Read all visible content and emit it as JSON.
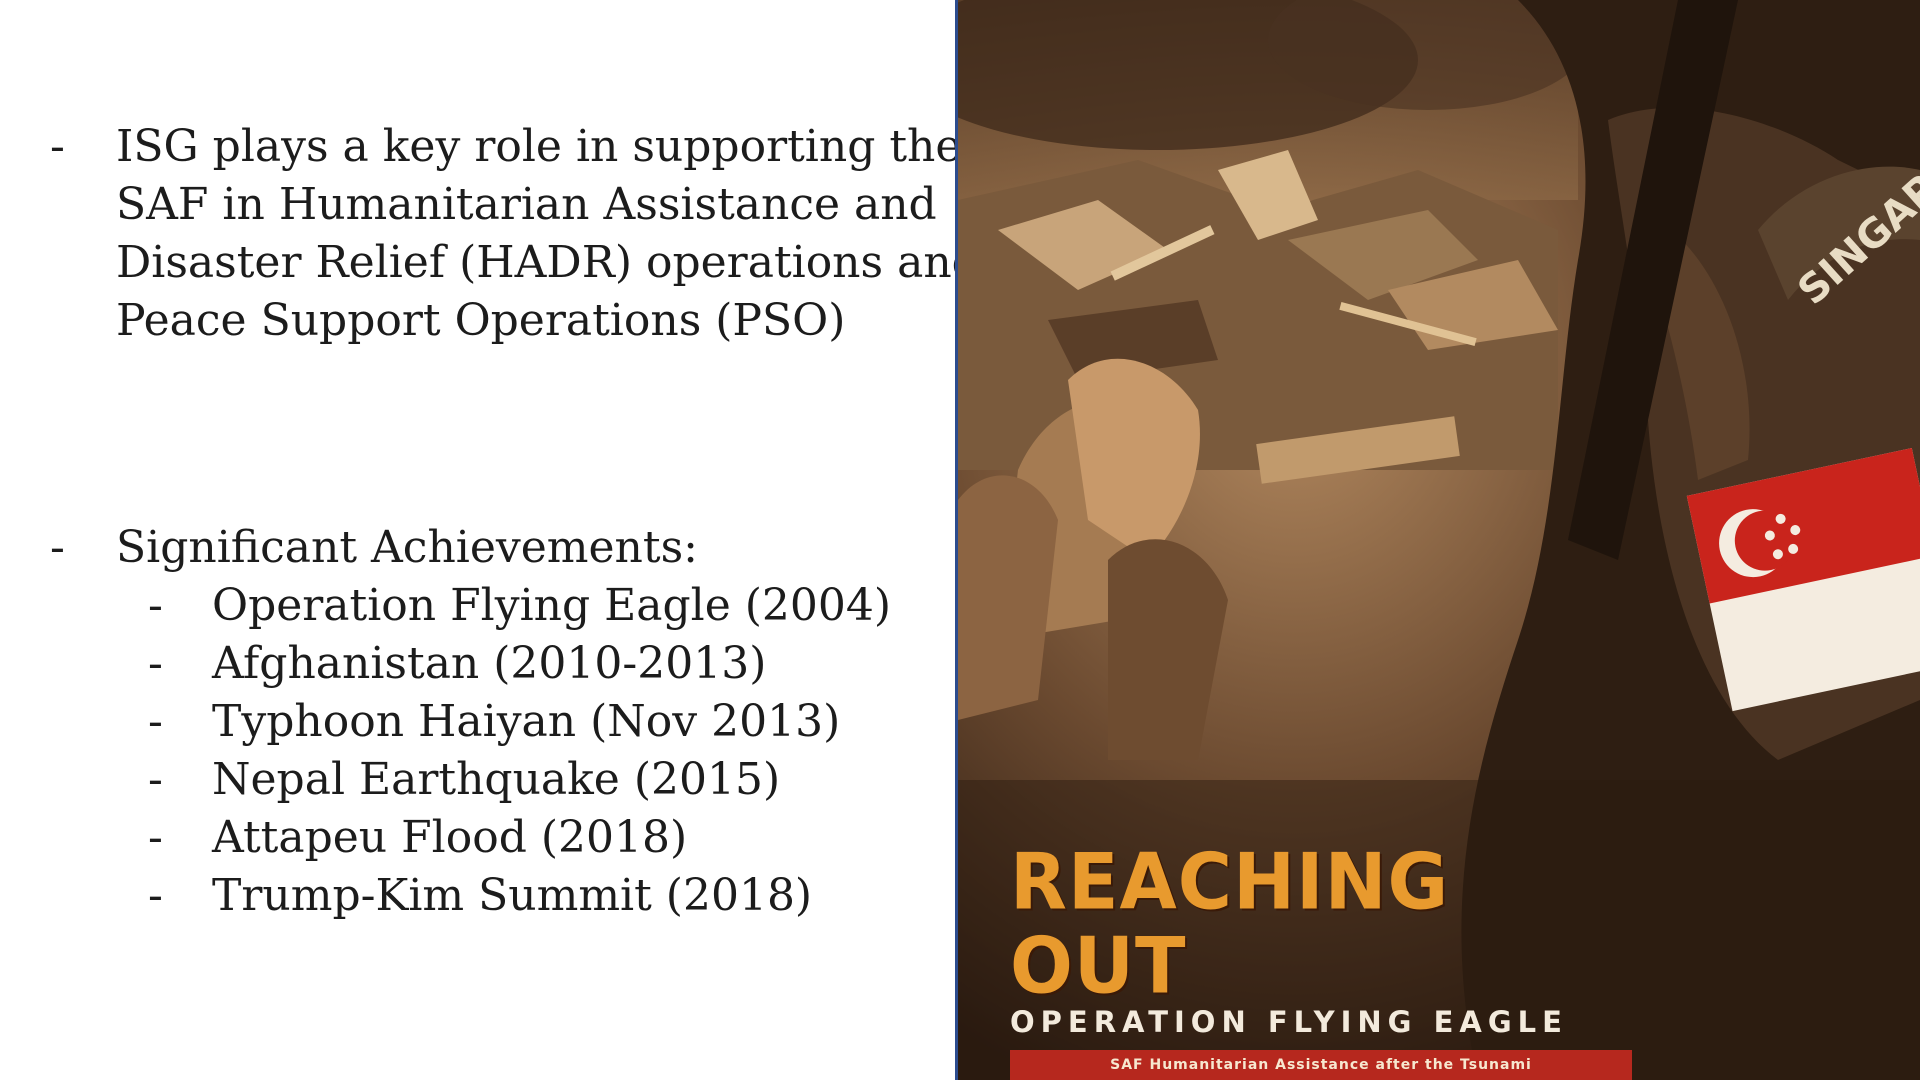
{
  "bullets": [
    {
      "marker": "-",
      "lines": [
        "ISG plays a key role in supporting the",
        "SAF in Humanitarian Assistance and",
        "Disaster Relief (HADR) operations and",
        "Peace Support Operations (PSO)"
      ]
    },
    {
      "marker": "-",
      "lines": [
        "Significant Achievements:"
      ],
      "subitems": [
        "Operation Flying Eagle (2004)",
        "Afghanistan (2010-2013)",
        "Typhoon Haiyan (Nov 2013)",
        "Nepal Earthquake (2015)",
        "Attapeu Flood (2018)",
        "Trump-Kim Summit (2018)"
      ]
    }
  ],
  "sub_marker": "-",
  "cover": {
    "title": "REACHING OUT",
    "subtitle": "OPERATION FLYING EAGLE",
    "band": "SAF Humanitarian Assistance after the Tsunami",
    "patch_text": "SINGAP"
  },
  "colors": {
    "text": "#1c1c1c",
    "divider": "#2c4c8e",
    "title_orange": "#e89a2e",
    "band_red": "#b6281e",
    "sepia_dark": "#3b2718",
    "sepia_light": "#a07a55"
  }
}
